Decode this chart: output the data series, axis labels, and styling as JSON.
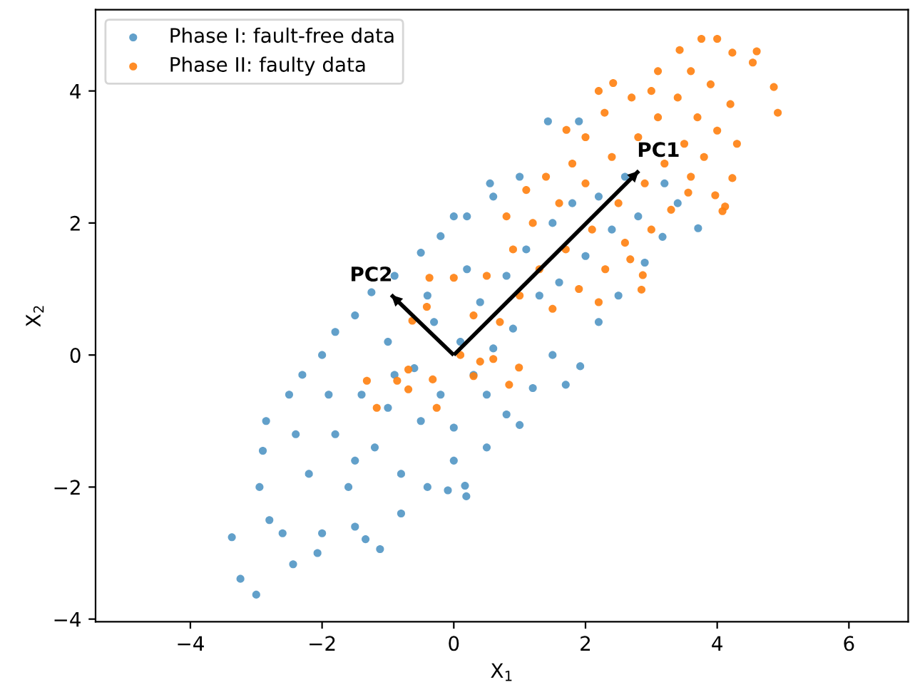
{
  "chart_data": {
    "type": "scatter",
    "xlabel": "X$_{1}$",
    "ylabel": "X$_{2}$",
    "xlim": [
      -5.44,
      6.9
    ],
    "ylim": [
      -4.04,
      5.23
    ],
    "xticks": [
      {
        "value": -4,
        "label": "−4"
      },
      {
        "value": -2,
        "label": "−2"
      },
      0,
      2,
      4,
      6
    ],
    "yticks": [
      {
        "value": -4,
        "label": "−4"
      },
      {
        "value": -2,
        "label": "−2"
      },
      0,
      2,
      4
    ],
    "legend": "top left",
    "grid": false,
    "marker": "circle",
    "series": [
      {
        "name": "Phase I: fault-free data",
        "color": "#1f77b4",
        "x": [
          -3.37,
          -3.24,
          -3.0,
          -2.44,
          -2.07,
          -1.12,
          -1.34,
          -0.09,
          0.19,
          0.17,
          1.0,
          1.7,
          1.92,
          3.71,
          3.17,
          1.43,
          1.9,
          -2.9,
          -2.85,
          -2.95,
          -2.8,
          -2.5,
          -2.3,
          -2.0,
          -1.8,
          -1.5,
          -1.25,
          -0.9,
          -0.5,
          -0.2,
          0.2,
          0.6,
          1.0,
          0.55,
          0.0,
          3.2,
          3.4,
          2.9,
          2.5,
          2.2,
          1.5,
          1.2,
          0.8,
          0.5,
          0.0,
          -0.4,
          -0.8,
          -1.5,
          -2.0,
          -2.6,
          -2.2,
          -1.8,
          -1.6,
          -1.4,
          -1.2,
          -1.0,
          -0.8,
          -0.6,
          -0.5,
          -0.3,
          -0.2,
          0.0,
          0.1,
          0.3,
          0.4,
          0.6,
          0.8,
          0.9,
          1.1,
          1.3,
          1.5,
          1.6,
          1.8,
          2.0,
          2.2,
          2.4,
          2.6,
          2.8,
          -2.4,
          -1.9,
          -1.0,
          -0.4,
          0.2,
          -1.5,
          -0.9,
          0.5
        ],
        "values": [
          -2.76,
          -3.39,
          -3.63,
          -3.17,
          -3.0,
          -2.94,
          -2.79,
          -2.05,
          -2.14,
          -1.98,
          -1.06,
          -0.45,
          -0.17,
          1.92,
          1.79,
          3.54,
          3.54,
          -1.45,
          -1.0,
          -2.0,
          -2.5,
          -0.6,
          -0.3,
          0.0,
          0.35,
          0.6,
          0.95,
          1.2,
          1.55,
          1.8,
          2.1,
          2.4,
          2.7,
          2.6,
          2.1,
          2.6,
          2.3,
          1.4,
          0.9,
          0.5,
          0.0,
          -0.5,
          -0.9,
          -1.4,
          -1.6,
          -2.0,
          -2.4,
          -2.6,
          -2.7,
          -2.7,
          -1.8,
          -1.2,
          -2.0,
          -0.6,
          -1.4,
          -0.8,
          -1.8,
          -0.2,
          -1.0,
          0.5,
          -0.6,
          -1.1,
          0.2,
          -0.3,
          0.8,
          0.1,
          1.2,
          0.4,
          1.6,
          0.9,
          2.0,
          1.1,
          2.3,
          1.5,
          2.4,
          1.9,
          2.7,
          2.1,
          -1.2,
          -0.6,
          0.2,
          0.9,
          1.3,
          -1.6,
          -0.3,
          -0.6
        ]
      },
      {
        "name": "Phase II: faulty data",
        "color": "#ff7f0e",
        "x": [
          -1.32,
          -1.17,
          -0.86,
          -0.69,
          -0.69,
          -0.32,
          -0.26,
          0.0,
          -0.37,
          -0.41,
          -0.63,
          0.84,
          0.3,
          0.6,
          0.99,
          3.76,
          4.0,
          3.43,
          4.23,
          4.6,
          4.54,
          4.86,
          4.92,
          4.23,
          4.12,
          4.08,
          3.97,
          3.56,
          2.85,
          2.87,
          2.68,
          1.71,
          2.2,
          2.42,
          2.29,
          0.3,
          0.5,
          0.7,
          0.9,
          1.0,
          1.2,
          1.3,
          1.5,
          1.6,
          1.7,
          1.9,
          2.0,
          2.1,
          2.3,
          2.4,
          2.5,
          2.6,
          2.8,
          2.9,
          3.0,
          3.1,
          3.2,
          3.3,
          3.4,
          3.5,
          3.6,
          3.7,
          3.8,
          3.9,
          4.0,
          4.2,
          4.3,
          2.7,
          3.1,
          1.1,
          0.8,
          0.1,
          0.4,
          1.4,
          1.8,
          2.2,
          3.0,
          3.6,
          2.0
        ],
        "values": [
          -0.39,
          -0.8,
          -0.39,
          -0.22,
          -0.52,
          -0.37,
          -0.8,
          1.17,
          1.17,
          0.73,
          0.52,
          -0.45,
          -0.32,
          -0.06,
          -0.19,
          4.79,
          4.79,
          4.62,
          4.58,
          4.6,
          4.43,
          4.06,
          3.67,
          2.68,
          2.25,
          2.18,
          2.42,
          2.46,
          0.99,
          1.21,
          1.45,
          3.41,
          4.0,
          4.12,
          3.67,
          0.6,
          1.2,
          0.5,
          1.6,
          0.9,
          2.0,
          1.3,
          0.7,
          2.3,
          1.6,
          1.0,
          2.6,
          1.9,
          1.3,
          3.0,
          2.3,
          1.7,
          3.3,
          2.6,
          1.9,
          3.6,
          2.9,
          2.2,
          3.9,
          3.2,
          2.7,
          3.6,
          3.0,
          4.1,
          3.4,
          3.8,
          3.2,
          3.9,
          4.3,
          2.5,
          2.1,
          0.0,
          -0.1,
          2.7,
          2.9,
          0.8,
          4.0,
          4.3,
          3.3
        ]
      },
      {
        "type": "line",
        "marker": "none",
        "name": "PC1",
        "color": "#000000",
        "x": [
          0,
          2.81
        ],
        "values": [
          0,
          2.79
        ]
      },
      {
        "type": "line",
        "marker": "none",
        "name": "PC2",
        "color": "#000000",
        "x": [
          0,
          -0.95
        ],
        "values": [
          0,
          0.91
        ]
      }
    ]
  }
}
